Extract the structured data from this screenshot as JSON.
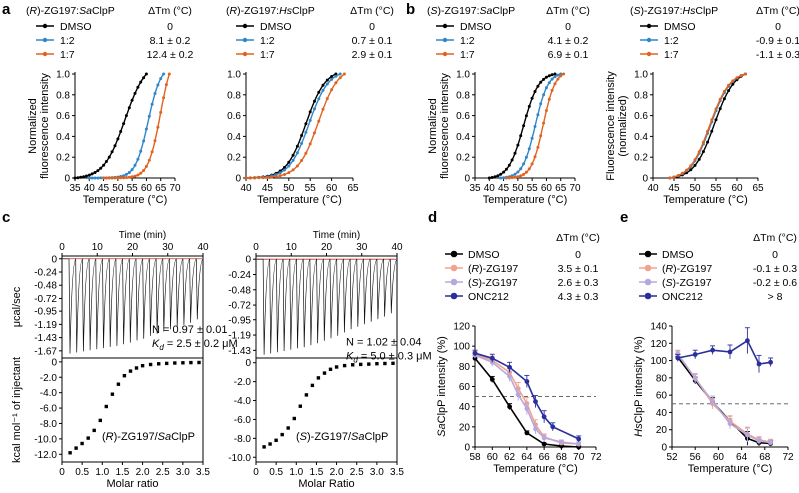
{
  "colors": {
    "dmso": "#000000",
    "r12": "#2f86c8",
    "r17": "#e0631f",
    "rZG": "#f2a38c",
    "sZG": "#b6a8dd",
    "onc": "#2a2f9a",
    "dash": "#555555",
    "baseline": "#c0392b"
  },
  "panel_letters": [
    "a",
    "b",
    "c",
    "d",
    "e"
  ],
  "dtm_header": "ΔTm (°C)",
  "itc_time_label": "Time (min)",
  "itc_ylabel_top": "μcal/sec",
  "itc_ylabel_bottom": "kcal mol⁻¹ of injectant",
  "chart_data": [
    {
      "type": "line",
      "title_prefix": "(",
      "title_stereo": "R",
      "title_mid": ")-ZG197:",
      "title_org": "Sa",
      "title_suffix": "ClpP",
      "xlabel": "Temperature (°C)",
      "ylabel1": "Normalized",
      "ylabel2": "fluorescence intensity",
      "xlim": [
        35,
        70
      ],
      "ylim": [
        0,
        1
      ],
      "xticks": [
        35,
        40,
        45,
        50,
        55,
        60,
        65,
        70
      ],
      "yticks": [
        0,
        0.2,
        0.4,
        0.6,
        0.8,
        1.0
      ],
      "series": [
        {
          "name": "DMSO",
          "dtm": "0",
          "color": "#000000",
          "tm": 52.5,
          "k": 0.27,
          "x": [
            35,
            60
          ]
        },
        {
          "name": "1:2",
          "dtm": "8.1 ± 0.2",
          "color": "#2f86c8",
          "tm": 60.6,
          "k": 0.45,
          "x": [
            40,
            66
          ]
        },
        {
          "name": "1:7",
          "dtm": "12.4 ± 0.2",
          "color": "#e0631f",
          "tm": 64.9,
          "k": 0.47,
          "x": [
            45,
            68
          ]
        }
      ]
    },
    {
      "type": "line",
      "title_prefix": "(",
      "title_stereo": "R",
      "title_mid": ")-ZG197:",
      "title_org": "Hs",
      "title_suffix": "ClpP",
      "xlabel": "Temperature (°C)",
      "xlim": [
        40,
        65
      ],
      "ylim": [
        0,
        1
      ],
      "xticks": [
        40,
        45,
        50,
        55,
        60,
        65
      ],
      "yticks": [
        0,
        0.2,
        0.4,
        0.6,
        0.8,
        1.0
      ],
      "series": [
        {
          "name": "DMSO",
          "dtm": "0",
          "color": "#000000",
          "tm": 54.0,
          "k": 0.44,
          "x": [
            40,
            61
          ]
        },
        {
          "name": "1:2",
          "dtm": "0.7 ± 0.1",
          "color": "#2f86c8",
          "tm": 54.7,
          "k": 0.44,
          "x": [
            40,
            62
          ]
        },
        {
          "name": "1:7",
          "dtm": "2.9 ± 0.1",
          "color": "#e0631f",
          "tm": 56.9,
          "k": 0.43,
          "x": [
            40,
            63
          ]
        }
      ]
    },
    {
      "type": "line",
      "title_prefix": "(",
      "title_stereo": "S",
      "title_mid": ")-ZG197:",
      "title_org": "Sa",
      "title_suffix": "ClpP",
      "xlabel": "Temperature (°C)",
      "ylabel1": "Normalized",
      "ylabel2": "fluorescence intensity",
      "xlim": [
        35,
        70
      ],
      "ylim": [
        0,
        1
      ],
      "xticks": [
        35,
        40,
        45,
        50,
        55,
        60,
        65,
        70
      ],
      "yticks": [
        0,
        0.2,
        0.4,
        0.6,
        0.8,
        1.0
      ],
      "series": [
        {
          "name": "DMSO",
          "dtm": "0",
          "color": "#000000",
          "tm": 52.0,
          "k": 0.38,
          "x": [
            40,
            63
          ]
        },
        {
          "name": "1:2",
          "dtm": "4.1 ± 0.2",
          "color": "#2f86c8",
          "tm": 56.1,
          "k": 0.45,
          "x": [
            44,
            65
          ]
        },
        {
          "name": "1:7",
          "dtm": "6.9 ± 0.1",
          "color": "#e0631f",
          "tm": 58.9,
          "k": 0.48,
          "x": [
            46,
            66
          ]
        }
      ]
    },
    {
      "type": "line",
      "title_prefix": "(",
      "title_stereo": "S",
      "title_mid": ")-ZG197:",
      "title_org": "Hs",
      "title_suffix": "ClpP",
      "xlabel": "Temperature (°C)",
      "ylabel1": "Fluorescence intensity",
      "ylabel2": "(normalized)",
      "xlim": [
        40,
        65
      ],
      "ylim": [
        0,
        1
      ],
      "xticks": [
        40,
        45,
        50,
        55,
        60,
        65
      ],
      "yticks": [
        0,
        0.2,
        0.4,
        0.6,
        0.8,
        1.0
      ],
      "series": [
        {
          "name": "DMSO",
          "dtm": "0",
          "color": "#000000",
          "tm": 54.6,
          "k": 0.42,
          "x": [
            44,
            62
          ]
        },
        {
          "name": "1:2",
          "dtm": "-0.9 ± 0.1",
          "color": "#2f86c8",
          "tm": 53.7,
          "k": 0.42,
          "x": [
            44,
            62
          ]
        },
        {
          "name": "1:7",
          "dtm": "-1.1 ± 0.3",
          "color": "#e0631f",
          "tm": 53.5,
          "k": 0.42,
          "x": [
            44,
            62
          ]
        }
      ]
    },
    {
      "type": "itc",
      "xlim_time": [
        0,
        40
      ],
      "xticks_time": [
        0,
        10,
        20,
        30,
        40
      ],
      "ylim_raw": [
        -1.8,
        0.05
      ],
      "yticks_raw": [
        "0",
        "-0.24",
        "-0.48",
        "-0.72",
        "-0.95",
        "-1.19",
        "-1.43",
        "-1.67"
      ],
      "ytick_raw_values": [
        0,
        -0.24,
        -0.48,
        -0.72,
        -0.95,
        -1.19,
        -1.43,
        -1.67
      ],
      "peaks": [
        -1.72,
        -1.7,
        -1.68,
        -1.66,
        -1.64,
        -1.62,
        -1.6,
        -1.58,
        -1.55,
        -1.52,
        -1.48,
        -1.45,
        -1.4,
        -1.36,
        -1.32,
        -1.28,
        -1.24,
        -1.2,
        -1.16,
        -1.1
      ],
      "N_text": "N = 0.97 ± 0.01",
      "Kd_label": "K",
      "Kd_sub": "d",
      "Kd_value": " = 2.5 ± 0.2 μM",
      "xlim_ratio": [
        0,
        3.5
      ],
      "xticks_ratio": [
        "0",
        "0.5",
        "1.0",
        "1.5",
        "2.0",
        "2.5",
        "3.0",
        "3.5"
      ],
      "ylim_int": [
        -13,
        0.5
      ],
      "yticks_int": [
        "0",
        "-2.0",
        "-4.0",
        "-6.0",
        "-8.0",
        "-10.0",
        "-12.0"
      ],
      "ytick_int_values": [
        0,
        -2,
        -4,
        -6,
        -8,
        -10,
        -12
      ],
      "x_ratio": [
        0.2,
        0.35,
        0.5,
        0.65,
        0.8,
        0.95,
        1.1,
        1.25,
        1.4,
        1.55,
        1.7,
        1.85,
        2.0,
        2.2,
        2.4,
        2.6,
        2.8,
        3.0,
        3.2,
        3.4
      ],
      "y_heat": [
        -11.8,
        -11.2,
        -10.6,
        -9.9,
        -8.9,
        -7.6,
        -5.8,
        -4.2,
        -2.9,
        -1.8,
        -1.2,
        -0.8,
        -0.5,
        -0.35,
        -0.25,
        -0.2,
        -0.15,
        -0.12,
        -0.1,
        -0.08
      ],
      "label_prefix": "(",
      "label_stereo": "R",
      "label_mid": ")-ZG197/",
      "label_org": "Sa",
      "label_suffix": "ClpP",
      "xlabel": "Molar ratio"
    },
    {
      "type": "itc",
      "xlim_time": [
        0,
        40
      ],
      "xticks_time": [
        0,
        10,
        20,
        30,
        40
      ],
      "ylim_raw": [
        -1.55,
        0.05
      ],
      "yticks_raw": [
        "0",
        "-0.24",
        "-0.48",
        "-0.72",
        "-0.95",
        "-1.19",
        "-1.43"
      ],
      "ytick_raw_values": [
        0,
        -0.24,
        -0.48,
        -0.72,
        -0.95,
        -1.19,
        -1.43
      ],
      "peaks": [
        -1.5,
        -1.48,
        -1.46,
        -1.44,
        -1.42,
        -1.4,
        -1.38,
        -1.35,
        -1.32,
        -1.28,
        -1.24,
        -1.2,
        -1.15,
        -1.1,
        -1.06,
        -1.02,
        -0.98,
        -0.94,
        -0.9,
        -0.85
      ],
      "N_text": "N = 1.02 ± 0.04",
      "Kd_label": "K",
      "Kd_sub": "d",
      "Kd_value": " = 5.0 ± 0.3 μM",
      "xlim_ratio": [
        0,
        3.5
      ],
      "xticks_ratio": [
        "0",
        "0.5",
        "1.0",
        "1.5",
        "2.0",
        "2.5",
        "3.0",
        "3.5"
      ],
      "ylim_int": [
        -10.5,
        0.5
      ],
      "yticks_int": [
        "0",
        "-2.0",
        "-4.0",
        "-6.0",
        "-8.0",
        "-10.0"
      ],
      "ytick_int_values": [
        0,
        -2,
        -4,
        -6,
        -8,
        -10
      ],
      "x_ratio": [
        0.2,
        0.35,
        0.5,
        0.65,
        0.8,
        0.95,
        1.1,
        1.25,
        1.4,
        1.55,
        1.7,
        1.85,
        2.0,
        2.2,
        2.4,
        2.6,
        2.8,
        3.0,
        3.2,
        3.4
      ],
      "y_heat": [
        -8.9,
        -8.6,
        -8.2,
        -7.6,
        -6.9,
        -5.9,
        -4.6,
        -3.4,
        -2.4,
        -1.6,
        -1.1,
        -0.7,
        -0.45,
        -0.3,
        -0.22,
        -0.18,
        -0.14,
        -0.1,
        -0.08,
        -0.06
      ],
      "label_prefix": "(",
      "label_stereo": "S",
      "label_mid": ")-ZG197/",
      "label_org": "Sa",
      "label_suffix": "ClpP",
      "xlabel": "Molar Ratio"
    },
    {
      "type": "line",
      "ylabel_italic": "Sa",
      "ylabel_rest": "ClpP intensity (%)",
      "xlabel": "Temperature (°C)",
      "xlim": [
        58,
        72
      ],
      "ylim": [
        0,
        120
      ],
      "xticks": [
        58,
        60,
        62,
        64,
        66,
        68,
        70,
        72
      ],
      "yticks": [
        0,
        20,
        40,
        60,
        80,
        100,
        120
      ],
      "dashed_y": 50,
      "series": [
        {
          "name": "DMSO",
          "dtm": "0",
          "color": "#000000",
          "x": [
            58,
            60,
            62,
            64,
            66,
            68,
            70
          ],
          "y": [
            88,
            67,
            40,
            14,
            3,
            1,
            0
          ],
          "err": [
            3,
            3,
            3,
            2,
            1,
            1,
            1
          ]
        },
        {
          "prefix": "(",
          "stereo": "R",
          "suffix": ")-ZG197",
          "name": "(R)-ZG197",
          "dtm": "3.5 ± 0.1",
          "color": "#f2a38c",
          "x": [
            58,
            60,
            62,
            63,
            64,
            65,
            66,
            68,
            70
          ],
          "y": [
            92,
            86,
            74,
            58,
            43,
            22,
            10,
            4,
            3
          ],
          "err": [
            3,
            4,
            4,
            6,
            6,
            5,
            3,
            2,
            2
          ]
        },
        {
          "prefix": "(",
          "stereo": "S",
          "suffix": ")-ZG197",
          "name": "(S)-ZG197",
          "dtm": "2.6 ± 0.3",
          "color": "#b6a8dd",
          "x": [
            58,
            60,
            62,
            63,
            64,
            65,
            66,
            68,
            70
          ],
          "y": [
            91,
            84,
            70,
            52,
            38,
            18,
            9,
            5,
            3
          ],
          "err": [
            3,
            4,
            5,
            6,
            6,
            5,
            3,
            2,
            2
          ]
        },
        {
          "name": "ONC212",
          "dtm": "4.3 ± 0.3",
          "color": "#2a2f9a",
          "x": [
            58,
            60,
            62,
            64,
            65,
            66,
            67,
            70
          ],
          "y": [
            93,
            88,
            79,
            65,
            45,
            30,
            20,
            8
          ],
          "err": [
            3,
            4,
            5,
            6,
            6,
            6,
            4,
            3
          ]
        }
      ]
    },
    {
      "type": "line",
      "ylabel_italic": "Hs",
      "ylabel_rest": "ClpP intensity (%)",
      "xlabel": "Temperature (°C)",
      "xlim": [
        52,
        72
      ],
      "ylim": [
        0,
        140
      ],
      "xticks": [
        52,
        56,
        60,
        64,
        68,
        72
      ],
      "yticks": [
        0,
        20,
        40,
        60,
        80,
        100,
        120,
        140
      ],
      "dashed_y": 50,
      "series": [
        {
          "name": "DMSO",
          "dtm": "0",
          "color": "#000000",
          "x": [
            53,
            56,
            59,
            62,
            65,
            67,
            69
          ],
          "y": [
            104,
            77,
            52,
            30,
            10,
            5,
            4
          ],
          "err": [
            4,
            4,
            5,
            6,
            8,
            4,
            3
          ]
        },
        {
          "prefix": "(",
          "stereo": "R",
          "suffix": ")-ZG197",
          "name": "(R)-ZG197",
          "dtm": "-0.1 ± 0.3",
          "color": "#f2a38c",
          "x": [
            53,
            56,
            59,
            62,
            65,
            67,
            69
          ],
          "y": [
            107,
            80,
            50,
            30,
            15,
            8,
            6
          ],
          "err": [
            4,
            5,
            6,
            6,
            8,
            4,
            3
          ]
        },
        {
          "prefix": "(",
          "stereo": "S",
          "suffix": ")-ZG197",
          "name": "(S)-ZG197",
          "dtm": "-0.2 ± 0.6",
          "color": "#b6a8dd",
          "x": [
            53,
            56,
            59,
            62,
            65,
            67,
            69
          ],
          "y": [
            108,
            79,
            53,
            27,
            14,
            7,
            5
          ],
          "err": [
            4,
            5,
            6,
            6,
            8,
            4,
            3
          ]
        },
        {
          "name": "ONC212",
          "dtm": "> 8",
          "color": "#2a2f9a",
          "x": [
            53,
            56,
            59,
            62,
            65,
            67,
            69
          ],
          "y": [
            103,
            107,
            112,
            110,
            123,
            96,
            98
          ],
          "err": [
            4,
            5,
            5,
            8,
            15,
            10,
            5
          ]
        }
      ]
    }
  ]
}
